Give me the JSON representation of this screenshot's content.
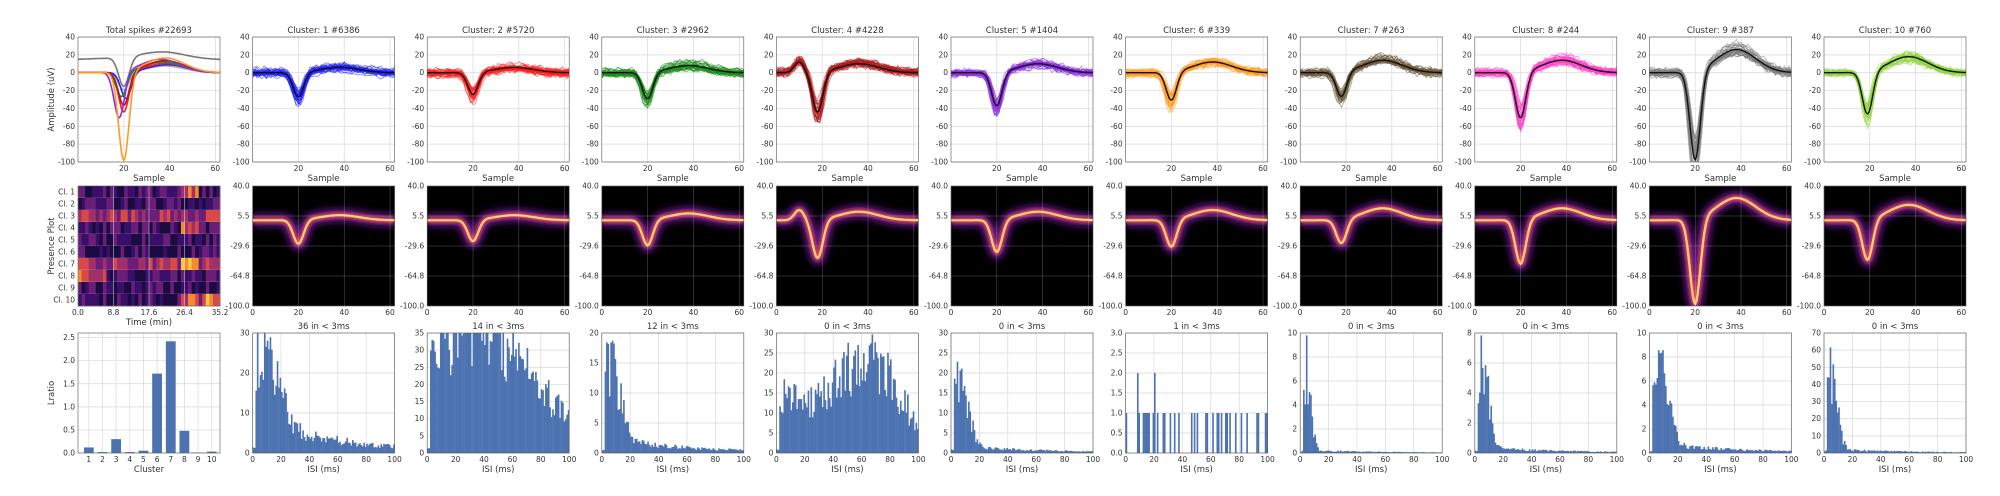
{
  "row1": {
    "ylabel": "Amplitude (uV)",
    "xlabel": "Sample",
    "yticks": [
      40,
      20,
      0,
      -20,
      -40,
      -60,
      -80,
      -100
    ],
    "xticks": [
      20,
      40,
      60
    ],
    "panels": [
      {
        "title": "Total spikes #22693",
        "color": "#555555",
        "ylim": [
          -100,
          40
        ]
      },
      {
        "title": "Cluster: 1 #6386",
        "color": "#1f1fff",
        "ylim": [
          -100,
          40
        ]
      },
      {
        "title": "Cluster: 2 #5720",
        "color": "#ff1a1a",
        "ylim": [
          -100,
          40
        ]
      },
      {
        "title": "Cluster: 3 #2962",
        "color": "#1a8c1a",
        "ylim": [
          -100,
          40
        ]
      },
      {
        "title": "Cluster: 4 #4228",
        "color": "#b01a1a",
        "ylim": [
          -100,
          40
        ]
      },
      {
        "title": "Cluster: 5 #1404",
        "color": "#8a2be2",
        "ylim": [
          -100,
          40
        ]
      },
      {
        "title": "Cluster: 6 #339",
        "color": "#ff9a1f",
        "ylim": [
          -100,
          40
        ]
      },
      {
        "title": "Cluster: 7 #263",
        "color": "#6b5a3a",
        "ylim": [
          -100,
          40
        ]
      },
      {
        "title": "Cluster: 8 #244",
        "color": "#ff3cc8",
        "ylim": [
          -100,
          40
        ]
      },
      {
        "title": "Cluster: 9 #387",
        "color": "#7a7a7a",
        "ylim": [
          -100,
          40
        ]
      },
      {
        "title": "Cluster: 10 #760",
        "color": "#8fd43a",
        "ylim": [
          -100,
          40
        ]
      }
    ]
  },
  "row2": {
    "presence": {
      "ylabel": "Presence Plot",
      "xlabel": "Time (min)",
      "rows": [
        "Cl. 1",
        "Cl. 2",
        "Cl. 3",
        "Cl. 4",
        "Cl. 5",
        "Cl. 6",
        "Cl. 7",
        "Cl. 8",
        "Cl. 9",
        "Cl. 10"
      ],
      "xticks": [
        "0.0",
        "8.8",
        "17.6",
        "26.4",
        "35.2"
      ]
    },
    "density_yticks": [
      "40.0",
      "5.5",
      "-29.6",
      "-64.8",
      "-100.0"
    ],
    "density_xticks": [
      0,
      20,
      40,
      60
    ]
  },
  "row3": {
    "ratio": {
      "ylabel": "Lratio",
      "xlabel": "Cluster",
      "categories": [
        1,
        2,
        3,
        4,
        5,
        6,
        7,
        8,
        9,
        10
      ],
      "values": [
        0.12,
        0.02,
        0.3,
        0.02,
        0.05,
        1.72,
        2.42,
        0.48,
        0.01,
        0.03
      ],
      "yticks": [
        "0.0",
        "0.5",
        "1.0",
        "1.5",
        "2.0",
        "2.5"
      ],
      "ylim": [
        0,
        2.6
      ]
    },
    "isi_xlabel": "ISI (ms)",
    "isi_xticks": [
      0,
      20,
      40,
      60,
      80,
      100
    ],
    "isi_panels": [
      {
        "title": "36 in < 3ms",
        "ymax": 30,
        "yticks": [
          0,
          10,
          20,
          30
        ]
      },
      {
        "title": "14 in < 3ms",
        "ymax": 35,
        "yticks": [
          0,
          5,
          10,
          15,
          20,
          25,
          30,
          35
        ]
      },
      {
        "title": "12 in < 3ms",
        "ymax": 20,
        "yticks": [
          0,
          5,
          10,
          15,
          20
        ]
      },
      {
        "title": "0 in < 3ms",
        "ymax": 30,
        "yticks": [
          0,
          5,
          10,
          15,
          20,
          25,
          30
        ]
      },
      {
        "title": "0 in < 3ms",
        "ymax": 30,
        "yticks": [
          0,
          5,
          10,
          15,
          20,
          25,
          30
        ]
      },
      {
        "title": "1 in < 3ms",
        "ymax": 3,
        "yticks": [
          "0.0",
          "0.5",
          "1.0",
          "1.5",
          "2.0",
          "2.5",
          "3.0"
        ]
      },
      {
        "title": "0 in < 3ms",
        "ymax": 10,
        "yticks": [
          0,
          2,
          4,
          6,
          8,
          10
        ]
      },
      {
        "title": "0 in < 3ms",
        "ymax": 8,
        "yticks": [
          0,
          2,
          4,
          6,
          8
        ]
      },
      {
        "title": "0 in < 3ms",
        "ymax": 10,
        "yticks": [
          0,
          2,
          4,
          6,
          8,
          10
        ]
      },
      {
        "title": "0 in < 3ms",
        "ymax": 70,
        "yticks": [
          0,
          10,
          20,
          30,
          40,
          50,
          60,
          70
        ]
      }
    ]
  },
  "chart_data": [
    {
      "type": "line",
      "title": "Total spikes #22693",
      "xlabel": "Sample",
      "ylabel": "Amplitude (uV)",
      "ylim": [
        -100,
        40
      ],
      "xlim": [
        0,
        62
      ],
      "series": [
        {
          "values_at_troughs": {
            "trough_sample": 20,
            "min": -33
          }
        },
        {
          "values_at_troughs": {
            "trough_sample": 20,
            "min": -20
          }
        },
        {
          "values_at_troughs": {
            "trough_sample": 21,
            "min": -30
          }
        },
        {
          "values_at_troughs": {
            "trough_sample": 20,
            "min": -45
          }
        },
        {
          "values_at_troughs": {
            "trough_sample": 19,
            "min": -28
          }
        },
        {
          "values_at_troughs": {
            "trough_sample": 20,
            "min": -38
          }
        },
        {
          "values_at_troughs": {
            "trough_sample": 18,
            "min": -52
          }
        },
        {
          "values_at_troughs": {
            "trough_sample": 20,
            "min": -100
          }
        }
      ]
    },
    {
      "type": "line",
      "title": "Cluster mean waveforms (rows 1 & 2)",
      "xlabel": "Sample",
      "ylim": [
        -100,
        40
      ],
      "series": [
        {
          "name": "Cluster: 1 #6386",
          "trough_sample": 20,
          "trough": -28,
          "peak": 6
        },
        {
          "name": "Cluster: 2 #5720",
          "trough_sample": 20,
          "trough": -25,
          "peak": 6
        },
        {
          "name": "Cluster: 3 #2962",
          "trough_sample": 20,
          "trough": -30,
          "peak": 8
        },
        {
          "name": "Cluster: 4 #4228",
          "trough_sample": 18,
          "trough": -45,
          "peak": 10
        },
        {
          "name": "Cluster: 5 #1404",
          "trough_sample": 20,
          "trough": -38,
          "peak": 10
        },
        {
          "name": "Cluster: 6 #339",
          "trough_sample": 20,
          "trough": -32,
          "peak": 12
        },
        {
          "name": "Cluster: 7 #263",
          "trough_sample": 18,
          "trough": -28,
          "peak": 14
        },
        {
          "name": "Cluster: 8 #244",
          "trough_sample": 20,
          "trough": -52,
          "peak": 14
        },
        {
          "name": "Cluster: 9 #387",
          "trough_sample": 20,
          "trough": -100,
          "peak": 26
        },
        {
          "name": "Cluster: 10 #760",
          "trough_sample": 19,
          "trough": -48,
          "peak": 18
        }
      ]
    },
    {
      "type": "bar",
      "xlabel": "Cluster",
      "ylabel": "Lratio",
      "categories": [
        1,
        2,
        3,
        4,
        5,
        6,
        7,
        8,
        9,
        10
      ],
      "values": [
        0.12,
        0.02,
        0.3,
        0.02,
        0.05,
        1.72,
        2.42,
        0.48,
        0.01,
        0.03
      ],
      "ylim": [
        0,
        2.6
      ]
    },
    {
      "type": "bar",
      "xlabel": "ISI (ms)",
      "xlim": [
        0,
        100
      ],
      "panels": [
        "36 in < 3ms",
        "14 in < 3ms",
        "12 in < 3ms",
        "0 in < 3ms",
        "0 in < 3ms",
        "1 in < 3ms",
        "0 in < 3ms",
        "0 in < 3ms",
        "0 in < 3ms",
        "0 in < 3ms"
      ]
    }
  ]
}
